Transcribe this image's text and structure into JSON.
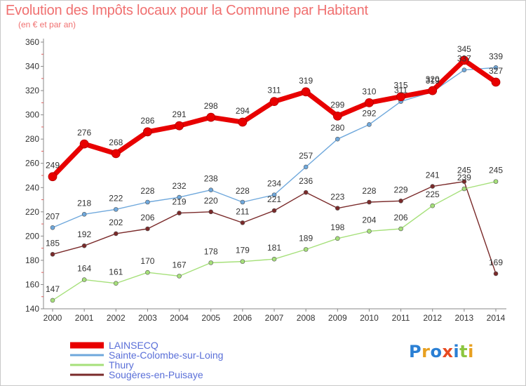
{
  "header": {
    "title": "Evolution des Impôts locaux pour la Commune par Habitant",
    "subtitle": "(en € et par an)"
  },
  "logo": {
    "text": "Proxiti",
    "colors": [
      "#2a7fd4",
      "#e8a020",
      "#2a7fd4",
      "#e84a20",
      "#2a7fd4",
      "#8cc63f",
      "#e8a020"
    ]
  },
  "chart_data": {
    "type": "line",
    "x": [
      2000,
      2001,
      2002,
      2003,
      2004,
      2005,
      2006,
      2007,
      2008,
      2009,
      2010,
      2011,
      2012,
      2013,
      2014
    ],
    "ylim": [
      140,
      360
    ],
    "yticks": [
      140,
      160,
      180,
      200,
      220,
      240,
      260,
      280,
      300,
      320,
      340,
      360
    ],
    "grid": false,
    "legend_position": "bottom-left",
    "series": [
      {
        "name": "LAINSECQ",
        "color": "#e80000",
        "values": [
          249,
          276,
          268,
          286,
          291,
          298,
          294,
          311,
          319,
          299,
          310,
          315,
          320,
          345,
          327
        ]
      },
      {
        "name": "Sainte-Colombe-sur-Loing",
        "color": "#6fa8dc",
        "values": [
          207,
          218,
          222,
          228,
          232,
          238,
          228,
          234,
          257,
          280,
          292,
          311,
          319,
          337,
          339
        ]
      },
      {
        "name": "Thury",
        "color": "#a6e07a",
        "values": [
          147,
          164,
          161,
          170,
          167,
          178,
          179,
          181,
          189,
          198,
          204,
          206,
          225,
          239,
          245
        ]
      },
      {
        "name": "Sougères-en-Puisaye",
        "color": "#7a2a2a",
        "values": [
          185,
          192,
          202,
          206,
          219,
          220,
          211,
          221,
          236,
          223,
          228,
          229,
          241,
          245,
          169
        ]
      }
    ]
  }
}
